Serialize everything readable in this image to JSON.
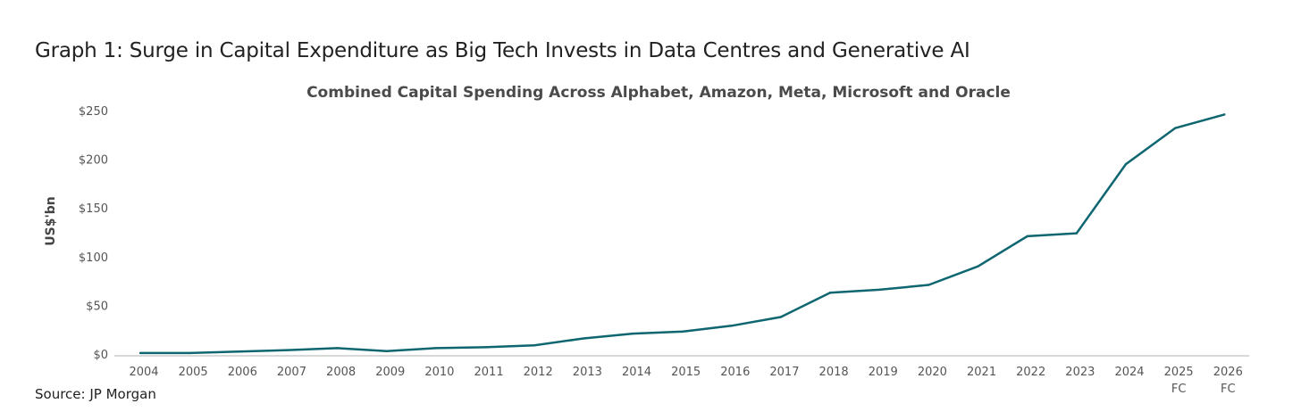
{
  "heading": "Graph 1: Surge in Capital Expenditure as Big Tech Invests in Data Centres and Generative AI",
  "source": "Source: JP Morgan",
  "colors": {
    "line": "#0e6670",
    "axis": "#cccccc"
  },
  "chart_data": {
    "type": "line",
    "title": "Combined Capital Spending Across Alphabet, Amazon, Meta, Microsoft and Oracle",
    "xlabel": "",
    "ylabel": "US$'bn",
    "ylim": [
      0,
      250
    ],
    "yticks": [
      0,
      50,
      100,
      150,
      200,
      250
    ],
    "ytick_labels": [
      "$0",
      "$50",
      "$100",
      "$150",
      "$200",
      "$250"
    ],
    "categories": [
      "2004",
      "2005",
      "2006",
      "2007",
      "2008",
      "2009",
      "2010",
      "2011",
      "2012",
      "2013",
      "2014",
      "2015",
      "2016",
      "2017",
      "2018",
      "2019",
      "2020",
      "2021",
      "2022",
      "2023",
      "2024",
      "2025",
      "2026"
    ],
    "category_sublabels": [
      "",
      "",
      "",
      "",
      "",
      "",
      "",
      "",
      "",
      "",
      "",
      "",
      "",
      "",
      "",
      "",
      "",
      "",
      "",
      "",
      "",
      "FC",
      "FC"
    ],
    "grid": false,
    "legend": "none",
    "series": [
      {
        "name": "Combined capital spending",
        "values": [
          1,
          1,
          2.5,
          4,
          6,
          3,
          6,
          7,
          9,
          16,
          21,
          23,
          29,
          38,
          63,
          66,
          71,
          90,
          121,
          124,
          195,
          232,
          246
        ]
      }
    ]
  }
}
